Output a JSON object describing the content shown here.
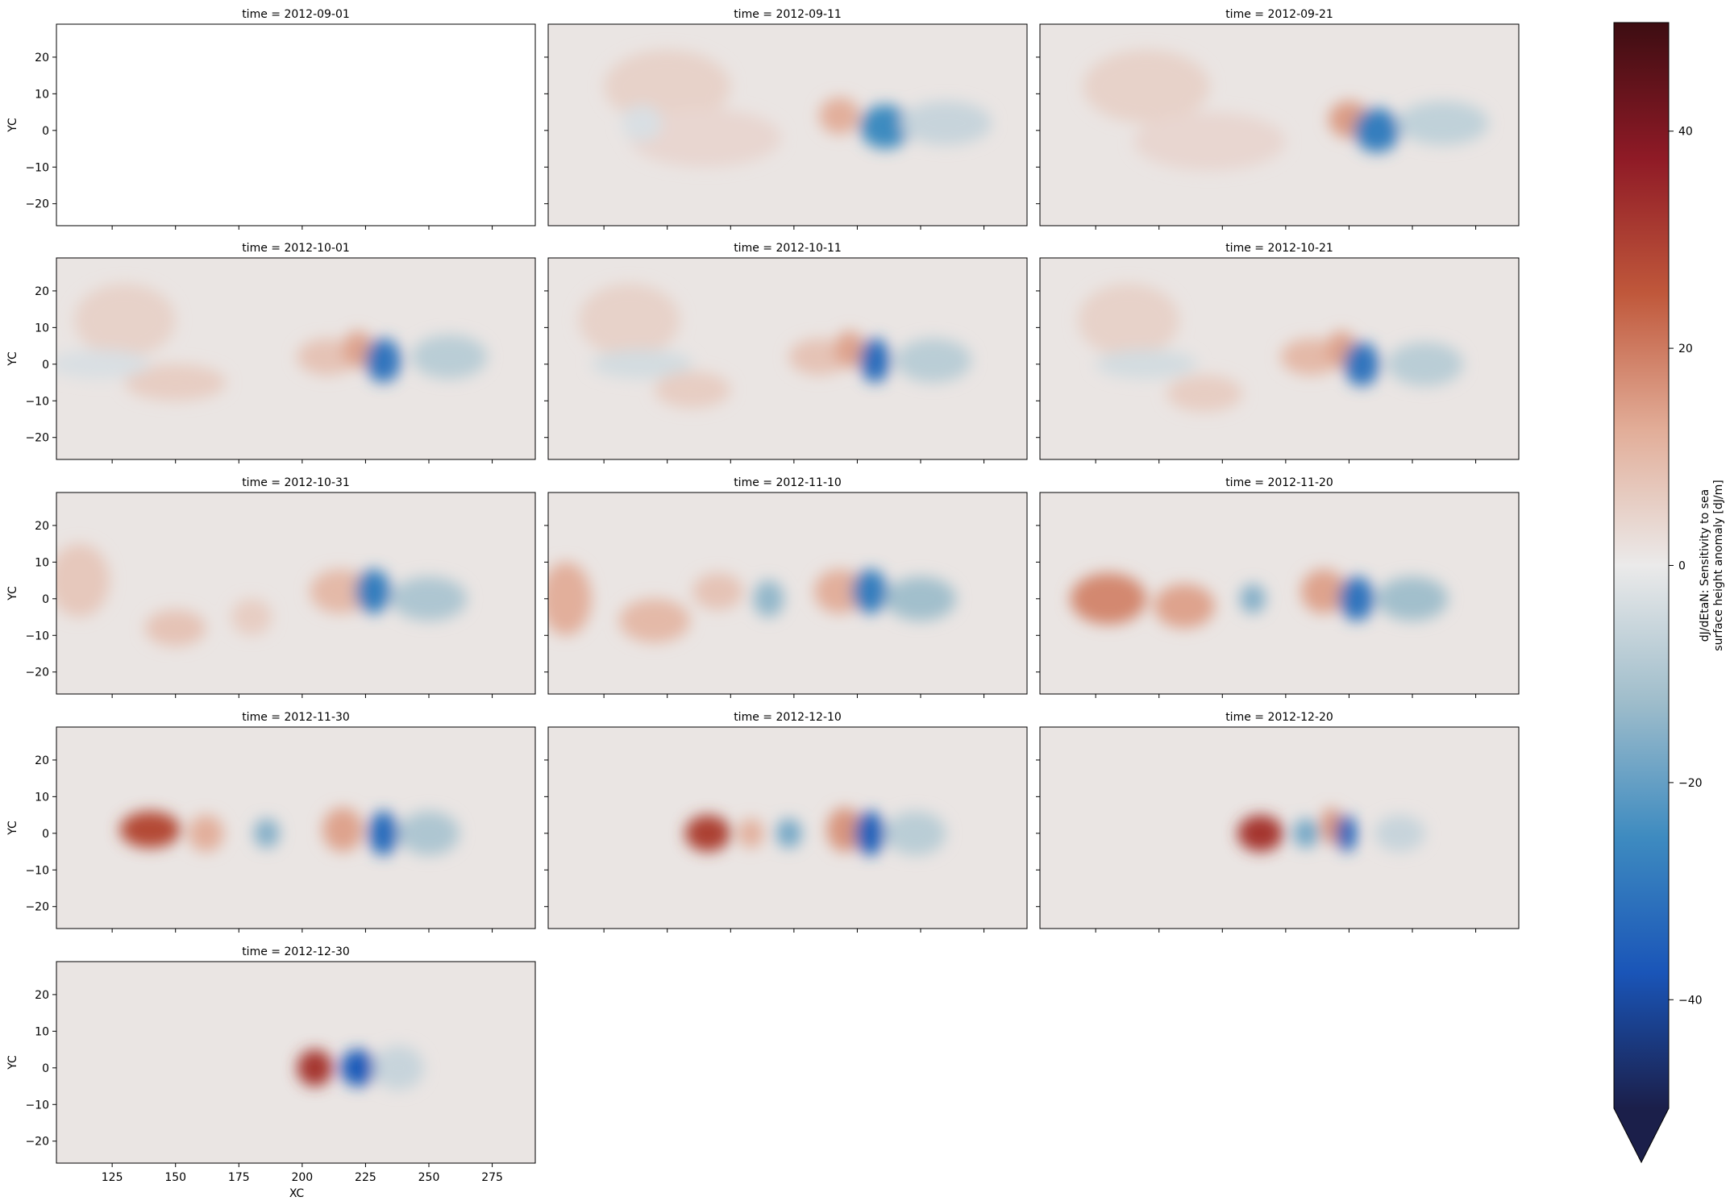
{
  "chart_data": {
    "type": "heatmap",
    "layout": "faceted grid, 5 rows x 3 columns, shared axes",
    "facet_title_prefix": "time = ",
    "panels": [
      {
        "time": "2012-09-01",
        "empty": true,
        "blobs": []
      },
      {
        "time": "2012-09-11",
        "empty": false,
        "blobs": [
          {
            "x": 150,
            "y": 12,
            "v": 5,
            "rx": 25,
            "ry": 10
          },
          {
            "x": 165,
            "y": -2,
            "v": 4,
            "rx": 30,
            "ry": 8
          },
          {
            "x": 140,
            "y": 2,
            "v": -3,
            "rx": 8,
            "ry": 5
          },
          {
            "x": 218,
            "y": 4,
            "v": 12,
            "rx": 8,
            "ry": 5
          },
          {
            "x": 236,
            "y": 1,
            "v": -25,
            "rx": 10,
            "ry": 6
          },
          {
            "x": 260,
            "y": 2,
            "v": -6,
            "rx": 18,
            "ry": 6
          }
        ]
      },
      {
        "time": "2012-09-21",
        "empty": false,
        "blobs": [
          {
            "x": 145,
            "y": 12,
            "v": 5,
            "rx": 25,
            "ry": 10
          },
          {
            "x": 170,
            "y": -3,
            "v": 4,
            "rx": 30,
            "ry": 8
          },
          {
            "x": 225,
            "y": 3,
            "v": 15,
            "rx": 8,
            "ry": 5
          },
          {
            "x": 236,
            "y": 0,
            "v": -28,
            "rx": 9,
            "ry": 6
          },
          {
            "x": 262,
            "y": 2,
            "v": -7,
            "rx": 18,
            "ry": 6
          }
        ]
      },
      {
        "time": "2012-10-01",
        "empty": false,
        "blobs": [
          {
            "x": 130,
            "y": 12,
            "v": 5,
            "rx": 20,
            "ry": 10
          },
          {
            "x": 150,
            "y": -5,
            "v": 6,
            "rx": 20,
            "ry": 5
          },
          {
            "x": 120,
            "y": 0,
            "v": -3,
            "rx": 20,
            "ry": 4
          },
          {
            "x": 210,
            "y": 2,
            "v": 8,
            "rx": 12,
            "ry": 5
          },
          {
            "x": 222,
            "y": 4,
            "v": 14,
            "rx": 6,
            "ry": 5
          },
          {
            "x": 232,
            "y": 1,
            "v": -30,
            "rx": 7,
            "ry": 6
          },
          {
            "x": 258,
            "y": 2,
            "v": -8,
            "rx": 15,
            "ry": 6
          }
        ]
      },
      {
        "time": "2012-10-11",
        "empty": false,
        "blobs": [
          {
            "x": 135,
            "y": 12,
            "v": 5,
            "rx": 20,
            "ry": 10
          },
          {
            "x": 140,
            "y": 0,
            "v": -4,
            "rx": 20,
            "ry": 4
          },
          {
            "x": 160,
            "y": -7,
            "v": 6,
            "rx": 15,
            "ry": 5
          },
          {
            "x": 210,
            "y": 2,
            "v": 8,
            "rx": 12,
            "ry": 5
          },
          {
            "x": 222,
            "y": 4,
            "v": 14,
            "rx": 6,
            "ry": 5
          },
          {
            "x": 232,
            "y": 1,
            "v": -32,
            "rx": 6,
            "ry": 6
          },
          {
            "x": 255,
            "y": 1,
            "v": -8,
            "rx": 15,
            "ry": 6
          }
        ]
      },
      {
        "time": "2012-10-21",
        "empty": false,
        "blobs": [
          {
            "x": 138,
            "y": 12,
            "v": 5,
            "rx": 20,
            "ry": 10
          },
          {
            "x": 145,
            "y": 0,
            "v": -4,
            "rx": 20,
            "ry": 4
          },
          {
            "x": 168,
            "y": -8,
            "v": 6,
            "rx": 15,
            "ry": 5
          },
          {
            "x": 210,
            "y": 2,
            "v": 10,
            "rx": 12,
            "ry": 5
          },
          {
            "x": 222,
            "y": 4,
            "v": 14,
            "rx": 6,
            "ry": 5
          },
          {
            "x": 230,
            "y": 0,
            "v": -30,
            "rx": 7,
            "ry": 6
          },
          {
            "x": 255,
            "y": 0,
            "v": -8,
            "rx": 15,
            "ry": 6
          }
        ]
      },
      {
        "time": "2012-10-31",
        "empty": false,
        "blobs": [
          {
            "x": 112,
            "y": 5,
            "v": 7,
            "rx": 12,
            "ry": 10
          },
          {
            "x": 150,
            "y": -8,
            "v": 8,
            "rx": 12,
            "ry": 5
          },
          {
            "x": 180,
            "y": -5,
            "v": 6,
            "rx": 8,
            "ry": 5
          },
          {
            "x": 215,
            "y": 2,
            "v": 10,
            "rx": 12,
            "ry": 6
          },
          {
            "x": 228,
            "y": 2,
            "v": -28,
            "rx": 7,
            "ry": 6
          },
          {
            "x": 250,
            "y": 0,
            "v": -10,
            "rx": 15,
            "ry": 6
          }
        ]
      },
      {
        "time": "2012-11-10",
        "empty": false,
        "blobs": [
          {
            "x": 110,
            "y": 0,
            "v": 12,
            "rx": 10,
            "ry": 10
          },
          {
            "x": 145,
            "y": -6,
            "v": 10,
            "rx": 14,
            "ry": 6
          },
          {
            "x": 170,
            "y": 2,
            "v": 8,
            "rx": 10,
            "ry": 5
          },
          {
            "x": 190,
            "y": 0,
            "v": -14,
            "rx": 6,
            "ry": 5
          },
          {
            "x": 218,
            "y": 2,
            "v": 12,
            "rx": 10,
            "ry": 6
          },
          {
            "x": 230,
            "y": 2,
            "v": -28,
            "rx": 7,
            "ry": 6
          },
          {
            "x": 250,
            "y": 0,
            "v": -12,
            "rx": 14,
            "ry": 6
          }
        ]
      },
      {
        "time": "2012-11-20",
        "empty": false,
        "blobs": [
          {
            "x": 130,
            "y": 0,
            "v": 18,
            "rx": 15,
            "ry": 7
          },
          {
            "x": 160,
            "y": -2,
            "v": 14,
            "rx": 12,
            "ry": 6
          },
          {
            "x": 187,
            "y": 0,
            "v": -16,
            "rx": 5,
            "ry": 4
          },
          {
            "x": 215,
            "y": 2,
            "v": 14,
            "rx": 9,
            "ry": 6
          },
          {
            "x": 228,
            "y": 0,
            "v": -30,
            "rx": 7,
            "ry": 6
          },
          {
            "x": 250,
            "y": 0,
            "v": -12,
            "rx": 14,
            "ry": 6
          }
        ]
      },
      {
        "time": "2012-11-30",
        "empty": false,
        "blobs": [
          {
            "x": 140,
            "y": 1,
            "v": 28,
            "rx": 12,
            "ry": 5
          },
          {
            "x": 162,
            "y": 0,
            "v": 12,
            "rx": 7,
            "ry": 5
          },
          {
            "x": 186,
            "y": 0,
            "v": -16,
            "rx": 5,
            "ry": 4
          },
          {
            "x": 216,
            "y": 1,
            "v": 14,
            "rx": 8,
            "ry": 6
          },
          {
            "x": 232,
            "y": 0,
            "v": -32,
            "rx": 6,
            "ry": 6
          },
          {
            "x": 250,
            "y": 0,
            "v": -10,
            "rx": 12,
            "ry": 6
          }
        ]
      },
      {
        "time": "2012-12-10",
        "empty": false,
        "blobs": [
          {
            "x": 166,
            "y": 0,
            "v": 30,
            "rx": 9,
            "ry": 5
          },
          {
            "x": 183,
            "y": 0,
            "v": 12,
            "rx": 5,
            "ry": 4
          },
          {
            "x": 198,
            "y": 0,
            "v": -18,
            "rx": 5,
            "ry": 4
          },
          {
            "x": 220,
            "y": 1,
            "v": 16,
            "rx": 7,
            "ry": 6
          },
          {
            "x": 230,
            "y": 0,
            "v": -34,
            "rx": 6,
            "ry": 6
          },
          {
            "x": 248,
            "y": 0,
            "v": -8,
            "rx": 12,
            "ry": 6
          }
        ]
      },
      {
        "time": "2012-12-20",
        "empty": false,
        "blobs": [
          {
            "x": 190,
            "y": 0,
            "v": 32,
            "rx": 9,
            "ry": 5
          },
          {
            "x": 208,
            "y": 0,
            "v": -18,
            "rx": 5,
            "ry": 4
          },
          {
            "x": 218,
            "y": 2,
            "v": 16,
            "rx": 4,
            "ry": 5
          },
          {
            "x": 224,
            "y": 0,
            "v": -34,
            "rx": 4,
            "ry": 5
          },
          {
            "x": 245,
            "y": 0,
            "v": -6,
            "rx": 10,
            "ry": 5
          }
        ]
      },
      {
        "time": "2012-12-30",
        "empty": false,
        "blobs": [
          {
            "x": 205,
            "y": 0,
            "v": 32,
            "rx": 7,
            "ry": 5
          },
          {
            "x": 222,
            "y": 0,
            "v": -36,
            "rx": 7,
            "ry": 5
          },
          {
            "x": 238,
            "y": 0,
            "v": -6,
            "rx": 10,
            "ry": 6
          }
        ]
      }
    ],
    "x_axis": {
      "label": "XC",
      "lim": [
        103,
        292
      ],
      "ticks": [
        125,
        150,
        175,
        200,
        225,
        250,
        275
      ],
      "shown_on": "bottom row panels only"
    },
    "y_axis": {
      "label": "YC",
      "lim": [
        -26,
        29
      ],
      "ticks": [
        -20,
        -10,
        0,
        10,
        20
      ],
      "shown_on": "left column panels only"
    },
    "colorbar": {
      "label_line1": "dJ/dEtaN: Sensitivity to sea",
      "label_line2": "surface height anomaly [dJ/m]",
      "vmin": -50,
      "vmax": 50,
      "ticks": [
        -40,
        -20,
        0,
        20,
        40
      ],
      "extend": "min",
      "colormap": "diverging blue-white-red (balance)",
      "stops": [
        "#1b1f4a",
        "#1a55b8",
        "#3e8bc0",
        "#9fbdcb",
        "#ebeaea",
        "#e2ad98",
        "#c0583b",
        "#8f1a26",
        "#3d0d12"
      ]
    },
    "background_value": 1
  }
}
